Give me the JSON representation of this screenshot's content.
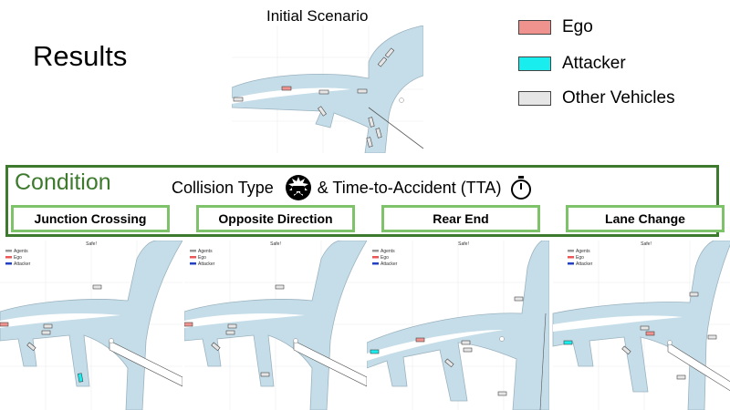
{
  "header": {
    "title": "Results",
    "initial_scenario": "Initial Scenario"
  },
  "legend": [
    {
      "label": "Ego",
      "color": "#f0928e"
    },
    {
      "label": "Attacker",
      "color": "#19eded"
    },
    {
      "label": "Other Vehicles",
      "color": "#e6e6e6"
    }
  ],
  "condition": {
    "label": "Condition",
    "collision_type": "Collision Type",
    "tta": "& Time-to-Accident (TTA)",
    "types": [
      "Junction Crossing",
      "Opposite Direction",
      "Rear End",
      "Lane Change"
    ]
  },
  "panel_legend": {
    "title": "Safe!",
    "agents": "Agents",
    "ego": "Ego",
    "attacker": "Attacker"
  },
  "colors": {
    "road": "#c5dde8",
    "accent_green": "#3d7a2e",
    "button_border": "#7ec26a"
  }
}
